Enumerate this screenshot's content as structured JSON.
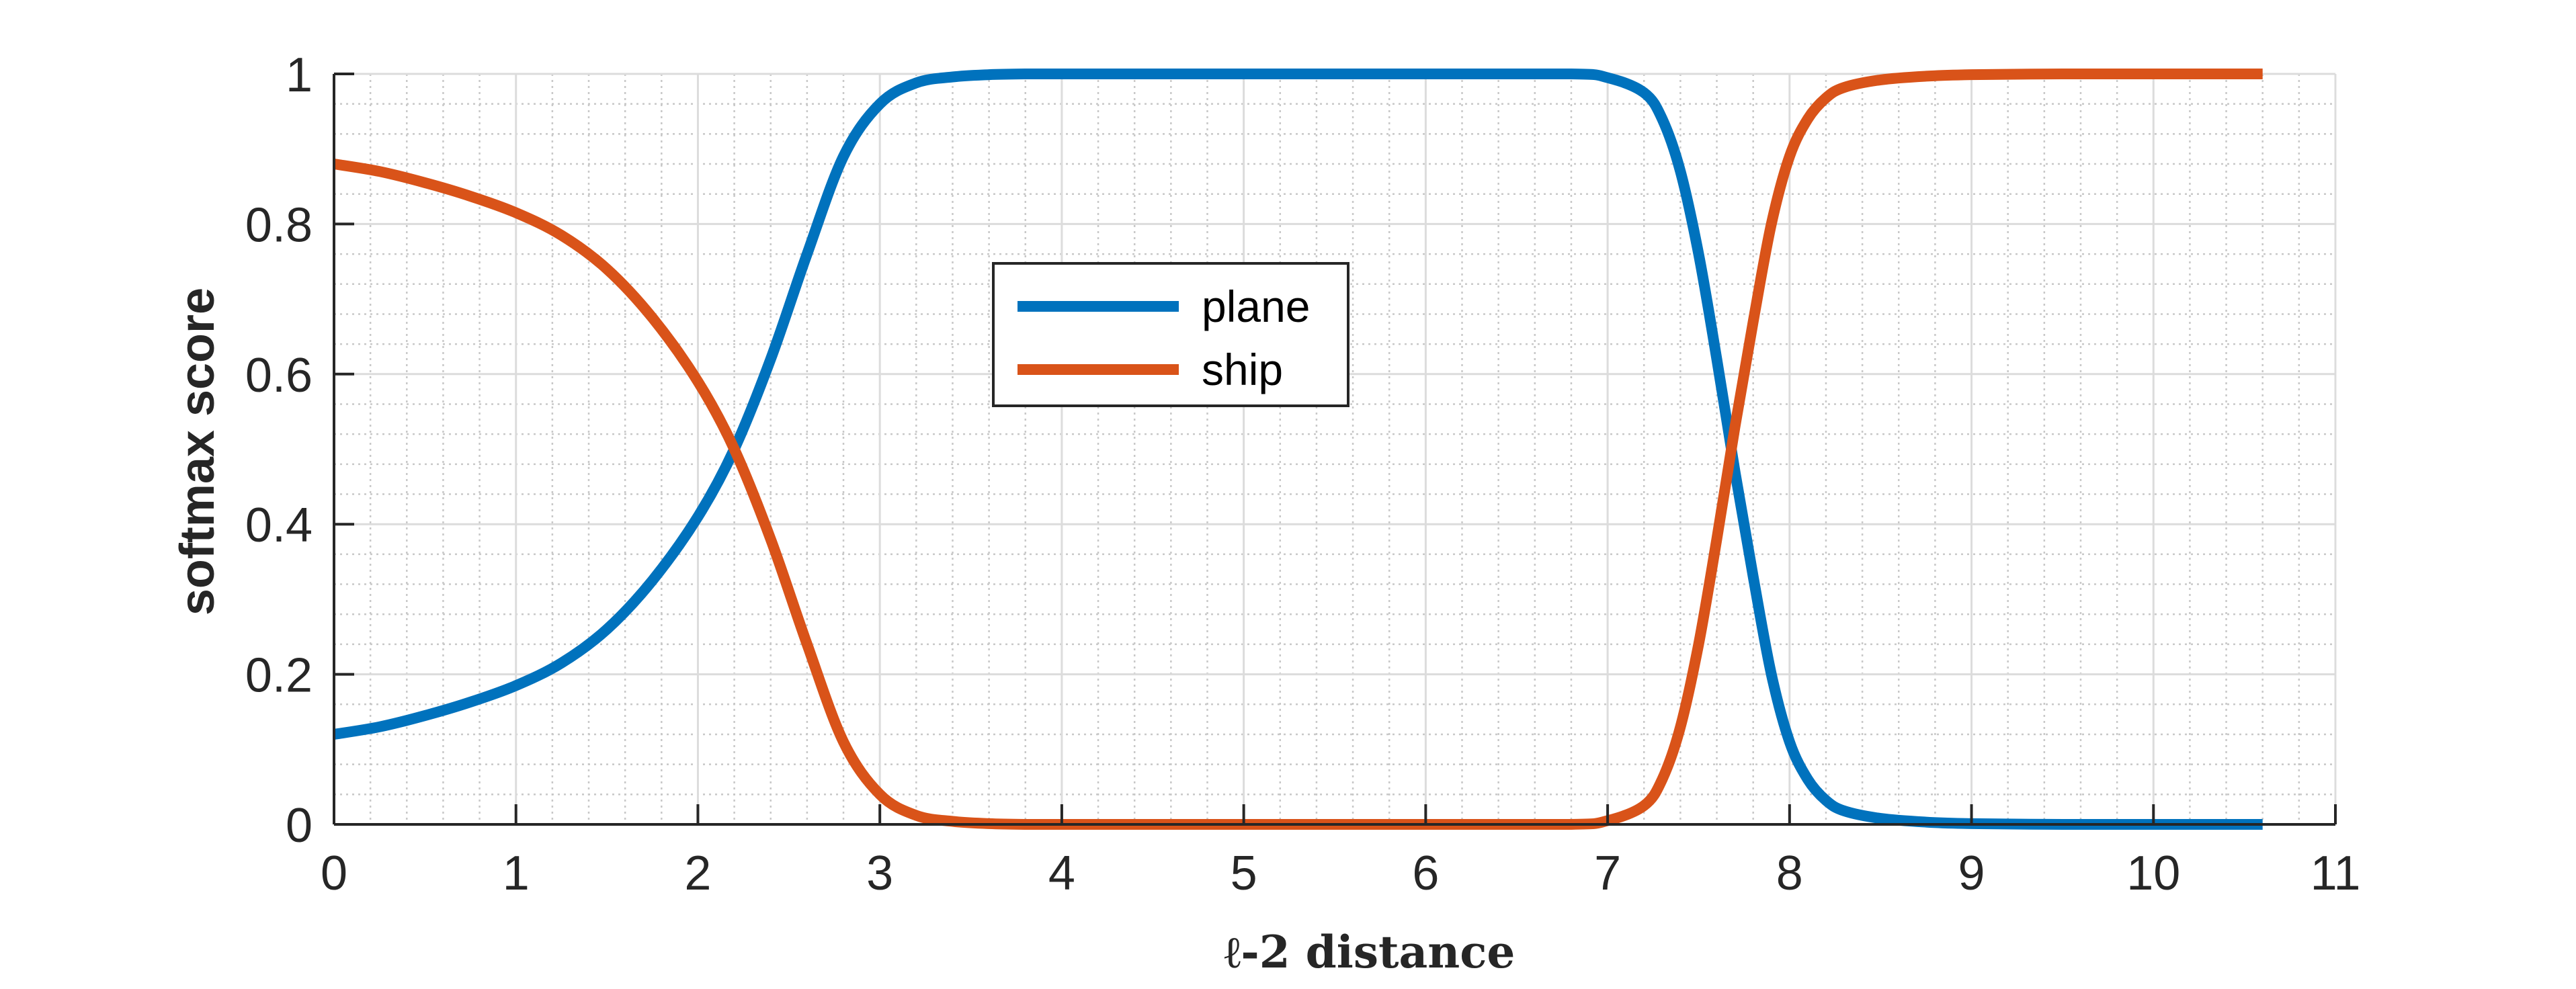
{
  "chart_data": {
    "type": "line",
    "title": "",
    "xlabel": "ℓ-2 distance",
    "ylabel": "softmax score",
    "xlim": [
      0,
      11
    ],
    "ylim": [
      0,
      1
    ],
    "xticks": [
      0,
      1,
      2,
      3,
      4,
      5,
      6,
      7,
      8,
      9,
      10,
      11
    ],
    "xtick_labels": [
      "0",
      "1",
      "2",
      "3",
      "4",
      "5",
      "6",
      "7",
      "8",
      "9",
      "10",
      "11"
    ],
    "yticks": [
      0,
      0.2,
      0.4,
      0.6,
      0.8,
      1
    ],
    "ytick_labels": [
      "0",
      "0.2",
      "0.4",
      "0.6",
      "0.8",
      "1"
    ],
    "grid": true,
    "minor_grid": true,
    "legend_position": "upper-center",
    "series": [
      {
        "name": "plane",
        "color": "#0072BD",
        "x": [
          0,
          0.25,
          0.5,
          0.75,
          1.0,
          1.25,
          1.5,
          1.75,
          2.0,
          2.2,
          2.4,
          2.6,
          2.8,
          3.0,
          3.2,
          3.4,
          3.6,
          3.8,
          4.0,
          5.0,
          6.0,
          6.8,
          7.0,
          7.2,
          7.3,
          7.4,
          7.5,
          7.6,
          7.7,
          7.8,
          7.9,
          8.0,
          8.1,
          8.2,
          8.3,
          8.5,
          8.75,
          9.0,
          9.5,
          10.0,
          10.6
        ],
        "y": [
          0.12,
          0.13,
          0.145,
          0.163,
          0.185,
          0.215,
          0.26,
          0.325,
          0.41,
          0.5,
          0.62,
          0.76,
          0.89,
          0.96,
          0.988,
          0.996,
          0.999,
          1.0,
          1.0,
          1.0,
          1.0,
          1.0,
          0.995,
          0.975,
          0.94,
          0.87,
          0.76,
          0.62,
          0.47,
          0.33,
          0.2,
          0.11,
          0.06,
          0.032,
          0.018,
          0.008,
          0.003,
          0.001,
          0.0,
          0.0,
          0.0
        ]
      },
      {
        "name": "ship",
        "color": "#D95319",
        "x": [
          0,
          0.25,
          0.5,
          0.75,
          1.0,
          1.25,
          1.5,
          1.75,
          2.0,
          2.2,
          2.4,
          2.6,
          2.8,
          3.0,
          3.2,
          3.4,
          3.6,
          3.8,
          4.0,
          5.0,
          6.0,
          6.8,
          7.0,
          7.2,
          7.3,
          7.4,
          7.5,
          7.6,
          7.7,
          7.8,
          7.9,
          8.0,
          8.1,
          8.2,
          8.3,
          8.5,
          8.75,
          9.0,
          9.5,
          10.0,
          10.6
        ],
        "y": [
          0.88,
          0.87,
          0.855,
          0.837,
          0.815,
          0.785,
          0.74,
          0.675,
          0.59,
          0.5,
          0.38,
          0.24,
          0.11,
          0.04,
          0.012,
          0.004,
          0.001,
          0.0,
          0.0,
          0.0,
          0.0,
          0.0,
          0.005,
          0.025,
          0.06,
          0.13,
          0.24,
          0.38,
          0.53,
          0.67,
          0.8,
          0.89,
          0.94,
          0.968,
          0.982,
          0.992,
          0.997,
          0.999,
          1.0,
          1.0,
          1.0
        ]
      }
    ]
  }
}
